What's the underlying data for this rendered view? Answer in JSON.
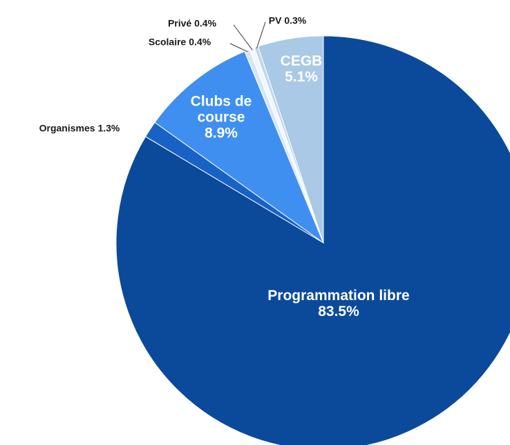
{
  "chart_data": {
    "type": "pie",
    "categories": [
      "Programmation libre",
      "Organismes",
      "Clubs de course",
      "Scolaire",
      "Privé",
      "PV",
      "CEGB"
    ],
    "values": [
      83.5,
      1.3,
      8.9,
      0.4,
      0.4,
      0.3,
      5.1
    ],
    "value_labels": [
      "83.5%",
      "1.3%",
      "8.9%",
      "0.4%",
      "0.4%",
      "0.3%",
      "5.1%"
    ],
    "colors": [
      "#0b4a9b",
      "#1862c6",
      "#3f8ff0",
      "#d6e5f5",
      "#f2f6fb",
      "#c0d7ef",
      "#a9c9e6"
    ]
  }
}
